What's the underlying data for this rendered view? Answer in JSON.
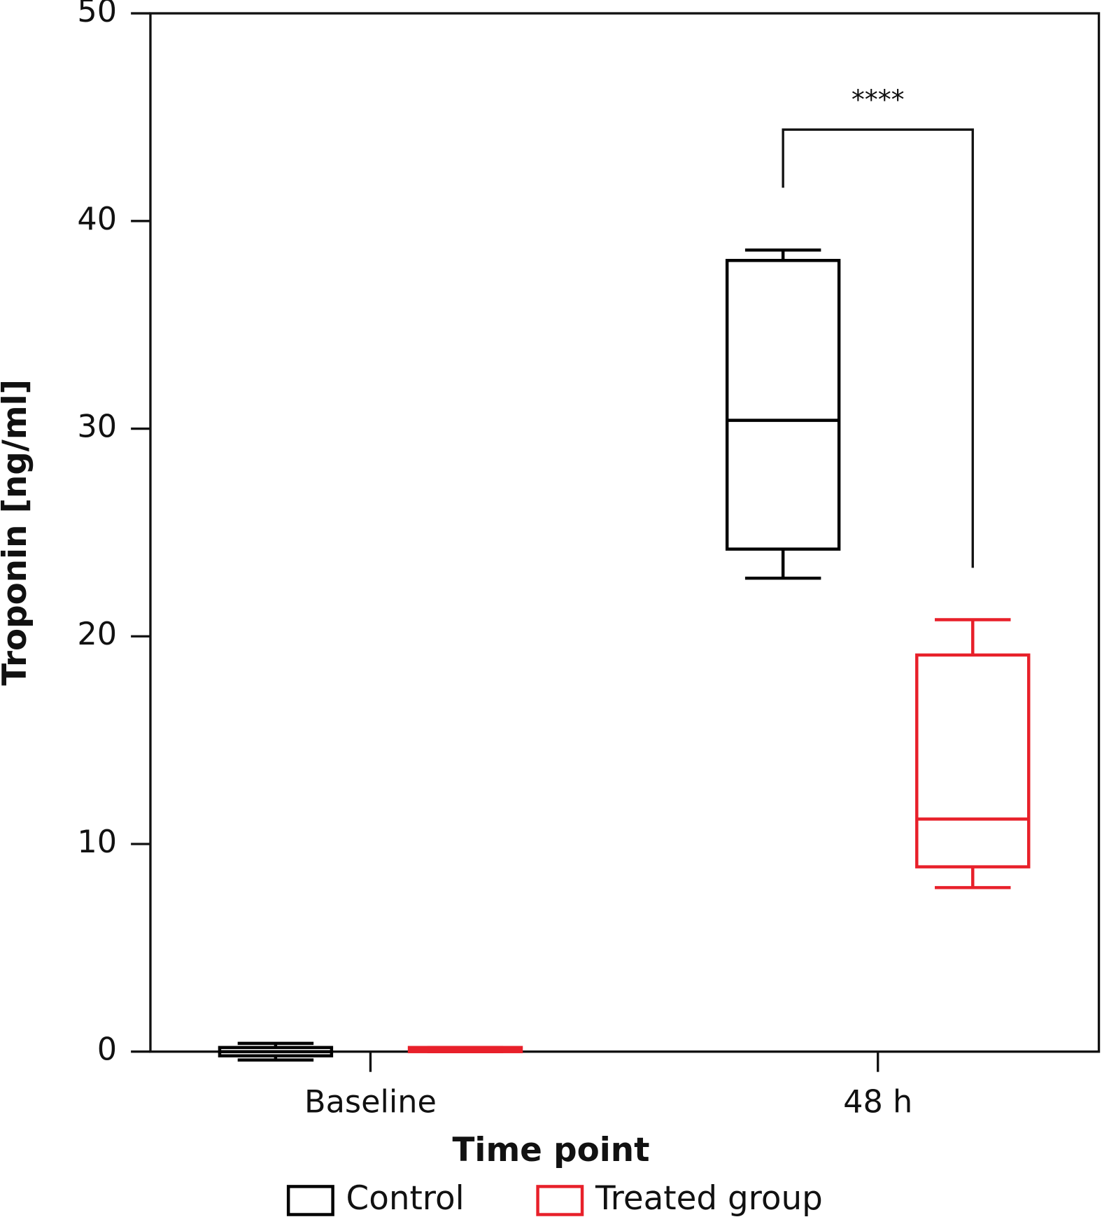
{
  "chart_data": {
    "type": "box",
    "x_label": "Time point",
    "y_label": "Troponin [ng/ml]",
    "categories": [
      "Baseline",
      "48 h"
    ],
    "ylim": [
      0,
      50
    ],
    "yticks": [
      0,
      10,
      20,
      30,
      40,
      50
    ],
    "series": [
      {
        "name": "Control",
        "color": "#000000",
        "boxes": [
          {
            "min": -0.4,
            "q1": -0.2,
            "median": 0,
            "q3": 0.2,
            "max": 0.4
          },
          {
            "min": 22.8,
            "q1": 24.2,
            "median": 30.4,
            "q3": 38.1,
            "max": 38.6
          }
        ]
      },
      {
        "name": "Treated group",
        "color": "#e8202a",
        "boxes": [
          {
            "min": 0,
            "q1": 0,
            "median": 0.1,
            "q3": 0.2,
            "max": 0.2
          },
          {
            "min": 7.9,
            "q1": 8.9,
            "median": 11.2,
            "q3": 19.1,
            "max": 20.8
          }
        ]
      }
    ],
    "annotation": {
      "text": "****",
      "y": 44.4,
      "left_end": 41.6,
      "right_end": 23.3
    }
  }
}
